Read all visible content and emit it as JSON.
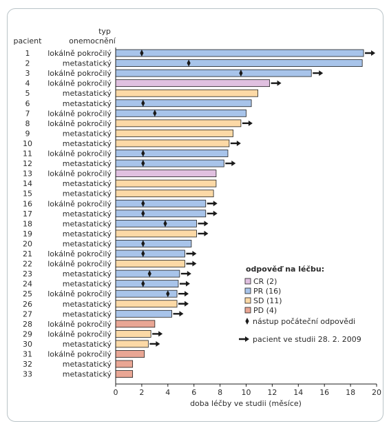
{
  "chart_data": {
    "type": "bar",
    "orientation": "horizontal",
    "col_patient_header": "pacient",
    "col_type_header_line1": "typ",
    "col_type_header_line2": "onemocnění",
    "xlabel": "doba léčby ve studii (měsíce)",
    "xlim": [
      0,
      20
    ],
    "xticks": [
      "0",
      "2",
      "4",
      "6",
      "8",
      "10",
      "12",
      "14",
      "16",
      "18",
      "20"
    ],
    "grid": false,
    "legend_position": "right",
    "legend_title": "odpověď na léčbu:",
    "legend": [
      {
        "key": "CR",
        "label": "CR (2)",
        "color": "#e0c0e0"
      },
      {
        "key": "PR",
        "label": "PR (16)",
        "color": "#a8c4ea"
      },
      {
        "key": "SD",
        "label": "SD (11)",
        "color": "#fcd9a6"
      },
      {
        "key": "PD",
        "label": "PD (4)",
        "color": "#e9a694"
      }
    ],
    "marker_diamond_label": "nástup počáteční odpovědi",
    "marker_arrow_label": "pacient ve studii 28. 2. 2009",
    "patients": [
      {
        "id": "1",
        "type": "lokálně pokročilý",
        "response": "PR",
        "duration": 19.0,
        "onset": 2.0,
        "ongoing": true
      },
      {
        "id": "2",
        "type": "metastatický",
        "response": "PR",
        "duration": 18.9,
        "onset": 5.6,
        "ongoing": false
      },
      {
        "id": "3",
        "type": "lokálně pokročilý",
        "response": "PR",
        "duration": 15.0,
        "onset": 9.6,
        "ongoing": true
      },
      {
        "id": "4",
        "type": "lokálně pokročilý",
        "response": "CR",
        "duration": 11.8,
        "onset": null,
        "ongoing": true
      },
      {
        "id": "5",
        "type": "metastatický",
        "response": "SD",
        "duration": 10.9,
        "onset": null,
        "ongoing": false
      },
      {
        "id": "6",
        "type": "metastatický",
        "response": "PR",
        "duration": 10.4,
        "onset": 2.1,
        "ongoing": false
      },
      {
        "id": "7",
        "type": "lokálně pokročilý",
        "response": "PR",
        "duration": 10.0,
        "onset": 3.0,
        "ongoing": false
      },
      {
        "id": "8",
        "type": "lokálně pokročilý",
        "response": "SD",
        "duration": 9.6,
        "onset": null,
        "ongoing": true
      },
      {
        "id": "9",
        "type": "metastatický",
        "response": "SD",
        "duration": 9.0,
        "onset": null,
        "ongoing": false
      },
      {
        "id": "10",
        "type": "metastatický",
        "response": "SD",
        "duration": 8.7,
        "onset": null,
        "ongoing": true
      },
      {
        "id": "11",
        "type": "lokálně pokročilý",
        "response": "PR",
        "duration": 8.6,
        "onset": 2.1,
        "ongoing": false
      },
      {
        "id": "12",
        "type": "metastatický",
        "response": "PR",
        "duration": 8.3,
        "onset": 2.1,
        "ongoing": true
      },
      {
        "id": "13",
        "type": "lokálně pokročilý",
        "response": "CR",
        "duration": 7.7,
        "onset": null,
        "ongoing": false
      },
      {
        "id": "14",
        "type": "metastatický",
        "response": "SD",
        "duration": 7.7,
        "onset": null,
        "ongoing": false
      },
      {
        "id": "15",
        "type": "metastatický",
        "response": "SD",
        "duration": 7.5,
        "onset": null,
        "ongoing": false
      },
      {
        "id": "16",
        "type": "lokálně pokročilý",
        "response": "PR",
        "duration": 6.9,
        "onset": 2.1,
        "ongoing": true
      },
      {
        "id": "17",
        "type": "metastatický",
        "response": "PR",
        "duration": 6.9,
        "onset": 2.1,
        "ongoing": true
      },
      {
        "id": "18",
        "type": "metastatický",
        "response": "PR",
        "duration": 6.2,
        "onset": 3.8,
        "ongoing": true
      },
      {
        "id": "19",
        "type": "metastatický",
        "response": "SD",
        "duration": 6.2,
        "onset": null,
        "ongoing": true
      },
      {
        "id": "20",
        "type": "metastatický",
        "response": "PR",
        "duration": 5.8,
        "onset": 2.1,
        "ongoing": false
      },
      {
        "id": "21",
        "type": "lokálně pokročilý",
        "response": "PR",
        "duration": 5.3,
        "onset": 2.1,
        "ongoing": true
      },
      {
        "id": "22",
        "type": "lokálně pokročilý",
        "response": "SD",
        "duration": 5.3,
        "onset": null,
        "ongoing": true
      },
      {
        "id": "23",
        "type": "metastatický",
        "response": "PR",
        "duration": 4.9,
        "onset": 2.6,
        "ongoing": true
      },
      {
        "id": "24",
        "type": "metastatický",
        "response": "PR",
        "duration": 4.8,
        "onset": 2.1,
        "ongoing": true
      },
      {
        "id": "25",
        "type": "lokálně pokročilý",
        "response": "PR",
        "duration": 4.7,
        "onset": 4.0,
        "ongoing": true
      },
      {
        "id": "26",
        "type": "metastatický",
        "response": "SD",
        "duration": 4.7,
        "onset": null,
        "ongoing": true
      },
      {
        "id": "27",
        "type": "metastatický",
        "response": "PR",
        "duration": 4.3,
        "onset": null,
        "ongoing": true
      },
      {
        "id": "28",
        "type": "lokálně pokročilý",
        "response": "PD",
        "duration": 3.0,
        "onset": null,
        "ongoing": false
      },
      {
        "id": "29",
        "type": "lokálně pokročilý",
        "response": "SD",
        "duration": 2.7,
        "onset": null,
        "ongoing": true
      },
      {
        "id": "30",
        "type": "metastatický",
        "response": "SD",
        "duration": 2.5,
        "onset": null,
        "ongoing": true
      },
      {
        "id": "31",
        "type": "lokálně pokročilý",
        "response": "PD",
        "duration": 2.2,
        "onset": null,
        "ongoing": false
      },
      {
        "id": "32",
        "type": "metastatický",
        "response": "PD",
        "duration": 1.3,
        "onset": null,
        "ongoing": false
      },
      {
        "id": "33",
        "type": "metastatický",
        "response": "PD",
        "duration": 1.3,
        "onset": null,
        "ongoing": false
      }
    ]
  }
}
